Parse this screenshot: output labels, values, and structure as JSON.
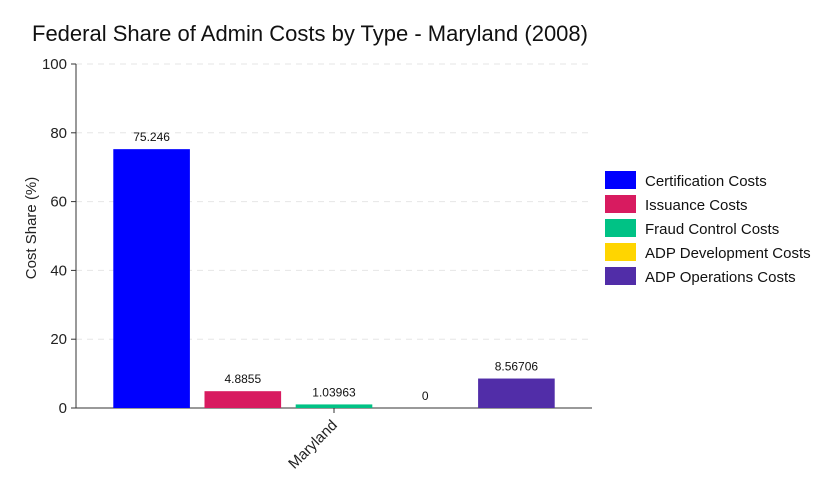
{
  "chart_data": {
    "type": "bar",
    "title": "Federal Share of Admin Costs by Type - Maryland (2008)",
    "xlabel": "",
    "ylabel": "Cost Share (%)",
    "categories": [
      "Maryland"
    ],
    "ylim": [
      0,
      100
    ],
    "yticks": [
      0,
      20,
      40,
      60,
      80,
      100
    ],
    "grid": "horizontal dashed",
    "legend_position": "right",
    "series": [
      {
        "name": "Certification Costs",
        "values": [
          75.246
        ],
        "label": "75.246",
        "color": "#0000ff"
      },
      {
        "name": "Issuance Costs",
        "values": [
          4.8855
        ],
        "label": "4.8855",
        "color": "#d81b60"
      },
      {
        "name": "Fraud Control Costs",
        "values": [
          1.03963
        ],
        "label": "1.03963",
        "color": "#00c285"
      },
      {
        "name": "ADP Development Costs",
        "values": [
          0
        ],
        "label": "0",
        "color": "#ffd500"
      },
      {
        "name": "ADP Operations Costs",
        "values": [
          8.56706
        ],
        "label": "8.56706",
        "color": "#512da8"
      }
    ]
  }
}
